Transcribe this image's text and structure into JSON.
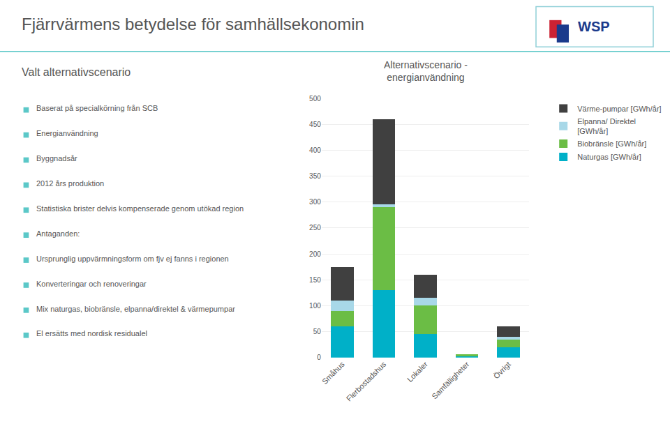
{
  "chart_data": {
    "type": "bar",
    "stacked": true,
    "title": "Fjärrvärmens betydelse för samhällsekonomin",
    "subtitle": "Alternativscenario -\nenergianvändning",
    "annotations": [
      "WSP",
      "Valt alternativscenario",
      "Baserat på specialkörning från SCB",
      "Energianvändning",
      "Byggnadsår",
      "2012 års produktion",
      "Statistiska brister delvis kompenserade genom utökad region",
      "Antaganden:",
      "Ursprunglig uppvärmningsform om fjv ej fanns i regionen",
      "Konverteringar och renoveringar",
      "Mix naturgas, biobränsle, elpanna/direktel & värmepumpar",
      "El ersätts med nordisk residualel"
    ],
    "categories": [
      "Småhus",
      "Flerbostadshus",
      "Lokaler",
      "Samfälligheter",
      "Övrigt"
    ],
    "series": [
      {
        "name": "Naturgas [GWh/år]",
        "color": "#00B0C8",
        "values": [
          60,
          130,
          45,
          2,
          20
        ]
      },
      {
        "name": "Biobränsle [GWh/år]",
        "color": "#6BBD45",
        "values": [
          30,
          160,
          55,
          4,
          15
        ]
      },
      {
        "name": "Elpanna/ Direktel\n[GWh/år]",
        "color": "#A8D8E8",
        "values": [
          20,
          5,
          15,
          0,
          5
        ]
      },
      {
        "name": "Värme-pumpar [GWh/år]",
        "color": "#404040",
        "values": [
          65,
          165,
          45,
          0,
          20
        ]
      }
    ],
    "ylim": [
      0,
      500
    ],
    "yticks": [
      0,
      50,
      100,
      150,
      200,
      250,
      300,
      350,
      400,
      450,
      500
    ],
    "grid": true,
    "legend": "right"
  }
}
